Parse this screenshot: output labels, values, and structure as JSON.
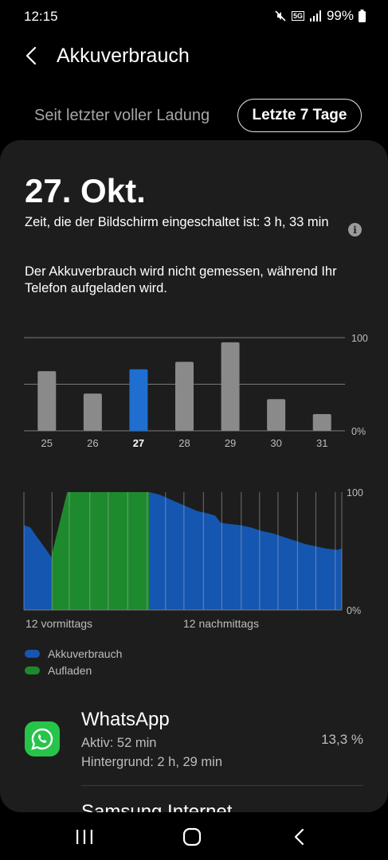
{
  "status": {
    "time": "12:15",
    "battery": "99%",
    "network": "5G"
  },
  "header": {
    "title": "Akkuverbrauch"
  },
  "tabs": [
    {
      "label": "Seit letzter voller Ladung",
      "active": false
    },
    {
      "label": "Letzte 7 Tage",
      "active": true
    }
  ],
  "summary": {
    "date": "27. Okt.",
    "screen_time": "Zeit, die der Bildschirm eingeschaltet ist: 3 h, 33 min",
    "notice": "Der Akkuverbrauch wird nicht gemessen, während Ihr Telefon aufgeladen wird."
  },
  "chart_data": [
    {
      "type": "bar",
      "categories": [
        "25",
        "26",
        "27",
        "28",
        "29",
        "30",
        "31"
      ],
      "values": [
        64,
        40,
        66,
        74,
        95,
        34,
        18
      ],
      "selected": "27",
      "ylim": [
        0,
        100
      ],
      "y_ticks": [
        "100",
        "0%"
      ],
      "colors": {
        "bar": "#8a8a8a",
        "selected": "#1e6fd0",
        "grid": "#7a7a7a"
      }
    },
    {
      "type": "area",
      "x_labels": [
        "12 vormittags",
        "12 nachmittags"
      ],
      "y_ticks": [
        "100",
        "0%"
      ],
      "ylim": [
        0,
        100
      ],
      "series": [
        {
          "name": "Akkuverbrauch",
          "color": "#1556b0"
        },
        {
          "name": "Aufladen",
          "color": "#1e8a2e"
        }
      ],
      "usage_before": [
        [
          0,
          72
        ],
        [
          0.6,
          70
        ],
        [
          1.2,
          62
        ],
        [
          2,
          52
        ],
        [
          2.6,
          44
        ]
      ],
      "charging": [
        [
          2.6,
          48
        ],
        [
          4,
          100
        ],
        [
          11.6,
          100
        ]
      ],
      "usage_after": [
        [
          11.6,
          100
        ],
        [
          12.5,
          98
        ],
        [
          13,
          96
        ],
        [
          14,
          92
        ],
        [
          15,
          88
        ],
        [
          16,
          84
        ],
        [
          17,
          82
        ],
        [
          17.7,
          80
        ],
        [
          18.2,
          74
        ],
        [
          19,
          73
        ],
        [
          20,
          72
        ],
        [
          21,
          70
        ],
        [
          22,
          67
        ],
        [
          23,
          65
        ],
        [
          24,
          62
        ],
        [
          25,
          59
        ],
        [
          26,
          56
        ],
        [
          27,
          54
        ],
        [
          28,
          52
        ],
        [
          29,
          51
        ],
        [
          29.4,
          52
        ]
      ],
      "x_max": 29.4,
      "v_grid": [
        0,
        2.6,
        4.2,
        6.1,
        7.8,
        9.6,
        11.4,
        13.1,
        14.8,
        16.6,
        18.3,
        20.1,
        21.8,
        23.5,
        25.3,
        27,
        28.8
      ]
    }
  ],
  "legend": [
    {
      "label": "Akkuverbrauch",
      "color": "#1556b0"
    },
    {
      "label": "Aufladen",
      "color": "#1e8a2e"
    }
  ],
  "apps": [
    {
      "name": "WhatsApp",
      "active": "Aktiv: 52 min",
      "background": "Hintergrund: 2 h, 29 min",
      "percent": "13,3 %"
    }
  ],
  "next_app": "Samsung Internet"
}
